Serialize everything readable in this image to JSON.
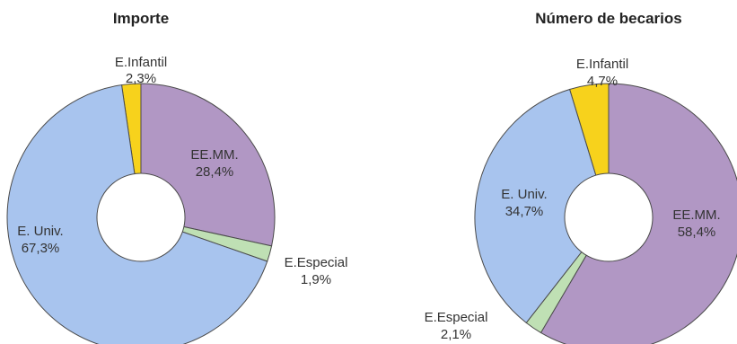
{
  "chart_data": [
    {
      "type": "pie",
      "title": "Importe",
      "categories": [
        "E.Infantil",
        "EE.MM.",
        "E.Especial",
        "E. Univ."
      ],
      "values": [
        2.3,
        28.4,
        1.9,
        67.3
      ],
      "value_labels": [
        "2,3%",
        "28,4%",
        "1,9%",
        "67,3%"
      ],
      "colors": [
        "#f7d21c",
        "#b197c4",
        "#bfe0b4",
        "#a8c4ee"
      ],
      "donut": true
    },
    {
      "type": "pie",
      "title": "Número de becarios",
      "categories": [
        "E.Infantil",
        "EE.MM.",
        "E.Especial",
        "E. Univ."
      ],
      "values": [
        4.7,
        58.4,
        2.1,
        34.7
      ],
      "value_labels": [
        "4,7%",
        "58,4%",
        "2,1%",
        "34,7%"
      ],
      "colors": [
        "#f7d21c",
        "#b197c4",
        "#bfe0b4",
        "#a8c4ee"
      ],
      "donut": true
    }
  ]
}
